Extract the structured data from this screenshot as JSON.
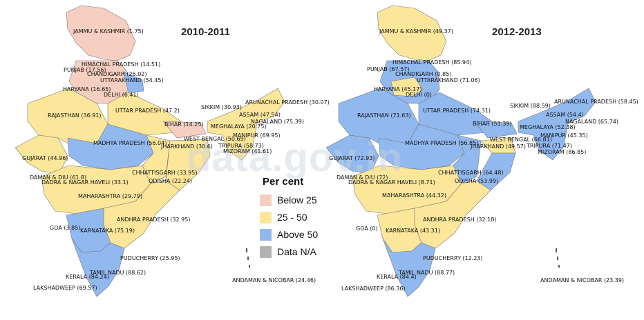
{
  "colors": {
    "below_25": "#f7cfc0",
    "between_25_50": "#fbe69a",
    "above_50": "#91b9f0",
    "na": "#b3b3b3"
  },
  "legend": {
    "title": "Per cent",
    "items": [
      {
        "label": "Below 25",
        "color_key": "below_25"
      },
      {
        "label": "25 - 50",
        "color_key": "between_25_50"
      },
      {
        "label": "Above 50",
        "color_key": "above_50"
      },
      {
        "label": "Data N/A",
        "color_key": "na"
      }
    ]
  },
  "watermark": "data.gov.in",
  "maps": [
    {
      "title": "2010-2011",
      "labels": [
        "JAMMU & KASHMIR (1.75)",
        "HIMACHAL PRADESH (14.51)",
        "PUNJAB (17.56)",
        "CHANDIGARH (26.02)",
        "UTTARAKHAND (54.45)",
        "HARYANA (16.65)",
        "DELHI (6.41)",
        "RAJASTHAN (36.91)",
        "UTTAR PRADESH (47.2)",
        "SIKKIM (30.93)",
        "ARUNACHAL PRADESH (30.07)",
        "ASSAM (47.54)",
        "NAGALAND (75.39)",
        "MEGHALAYA (20.75)",
        "BIHAR (14.25)",
        "MANIPUR (69.95)",
        "WEST BENGAL (50.69)",
        "JHARKHAND (30.6)",
        "TRIPURA (58.73)",
        "MIZORAM (41.61)",
        "MADHYA PRADESH (56.04)",
        "GUJARAT (44.96)",
        "CHHATTISGARH (33.95)",
        "DAMAN & DIU (61.8)",
        "DADRA & NAGAR HAVELI (33.1)",
        "ODISHA (22.24)",
        "MAHARASHTRA (29.79)",
        "ANDHRA PRADESH (32.95)",
        "GOA (3.85)",
        "KARNATAKA (75.19)",
        "PUDUCHERRY (25.95)",
        "TAMIL NADU (88.62)",
        "KERALA (84.24)",
        "LAKSHADWEEP (69.57)",
        "ANDAMAN & NICOBAR (24.46)"
      ]
    },
    {
      "title": "2012-2013",
      "labels": [
        "JAMMU & KASHMIR (49.37)",
        "HIMACHAL PRADESH (85.94)",
        "PUNJAB (67.57)",
        "CHANDIGARH (0.85)",
        "UTTARAKHAND (71.06)",
        "HARYANA (45.17)",
        "DELHI (0)",
        "RAJASTHAN (71.63)",
        "UTTAR PRADESH (74.31)",
        "SIKKIM (88.59)",
        "ARUNACHAL PRADESH (58.45)",
        "ASSAM (54.4)",
        "NAGALAND (65.74)",
        "MEGHALAYA (52.38)",
        "BIHAR (51.39)",
        "MANIPUR (45.35)",
        "WEST BENGAL (66.81)",
        "JHARKHAND (49.57)",
        "TRIPURA (71.47)",
        "MIZORAM (86.85)",
        "MADHYA PRADESH (56.85)",
        "GUJARAT (72.93)",
        "CHHATTISGARH (64.48)",
        "DAMAN & DIU (72)",
        "DADRA & NAGAR HAVELI (8.71)",
        "ODISHA (53.99)",
        "MAHARASHTRA (44.32)",
        "ANDHRA PRADESH (32.18)",
        "GOA (0)",
        "KARNATAKA (43.31)",
        "PUDUCHERRY (12.23)",
        "TAMIL NADU (88.77)",
        "KERALA (84.4)",
        "LAKSHADWEEP (86.36)",
        "ANDAMAN & NICOBAR (23.39)"
      ]
    }
  ]
}
